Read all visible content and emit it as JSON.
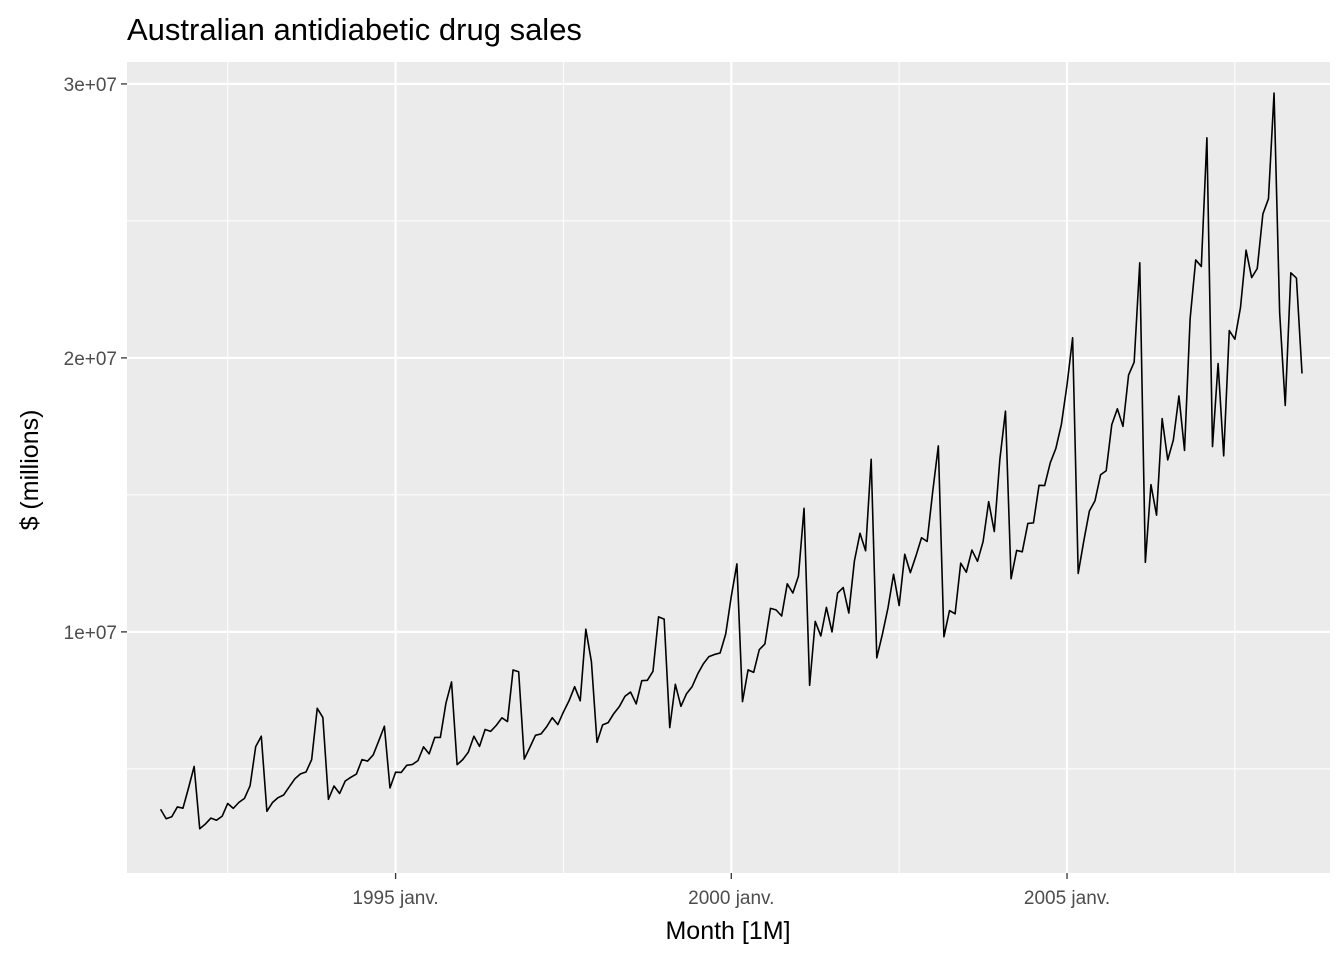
{
  "chart_data": {
    "type": "line",
    "title": "Australian antidiabetic drug sales",
    "xlabel": "Month [1M]",
    "ylabel": "$ (millions)",
    "x_range": [
      "1991-07",
      "2008-06"
    ],
    "x_axis_scale": "monthly dates",
    "xlim": [
      "1991-01",
      "2008-12"
    ],
    "ylim": [
      1200000,
      30800000
    ],
    "x_ticks": [
      {
        "value": "1995-01",
        "label": "1995 janv."
      },
      {
        "value": "2000-01",
        "label": "2000 janv."
      },
      {
        "value": "2005-01",
        "label": "2005 janv."
      }
    ],
    "x_minor_gridlines": [
      "1992-07",
      "1997-07",
      "2002-07",
      "2007-07"
    ],
    "y_ticks": [
      {
        "value": 10000000,
        "label": "1e+07"
      },
      {
        "value": 20000000,
        "label": "2e+07"
      },
      {
        "value": 30000000,
        "label": "3e+07"
      }
    ],
    "y_minor_gridlines": [
      5000000,
      15000000,
      25000000
    ],
    "grid": true,
    "legend": "none",
    "colors": {
      "panel": "#ebebeb",
      "grid": "#ffffff",
      "line": "#000000"
    },
    "series": [
      {
        "values": [
          3526591,
          3180891,
          3252221,
          3611003,
          3565869,
          4306371,
          5088335,
          2814520,
          2985811,
          3204780,
          3127578,
          3270523,
          3737851,
          3558776,
          3777202,
          3924490,
          4386531,
          5810549,
          6192068,
          3450857,
          3772307,
          3949726,
          4047497,
          4344711,
          4637489,
          4818166,
          4888170,
          5337713,
          7210070,
          6878754,
          3889470,
          4376800,
          4102680,
          4557180,
          4693630,
          4811790,
          5339050,
          5285640,
          5508960,
          6024130,
          6555800,
          4303100,
          4878700,
          4869000,
          5130800,
          5160500,
          5301700,
          5804200,
          5547600,
          6146800,
          6147400,
          7396400,
          8173100,
          5153400,
          5338000,
          5610000,
          6191100,
          5819800,
          6439000,
          6370300,
          6587900,
          6863800,
          6728500,
          8610800,
          8544200,
          5358900,
          5785200,
          6226200,
          6277000,
          6537700,
          6868600,
          6617400,
          7077500,
          7485200,
          8000500,
          7485000,
          10100600,
          8915000,
          5969300,
          6606500,
          6689900,
          7018800,
          7275900,
          7652400,
          7803700,
          7370600,
          8219900,
          8231400,
          8560300,
          10549500,
          10466100,
          6507400,
          8085200,
          7282700,
          7744300,
          8003800,
          8467300,
          8832200,
          9099200,
          9176200,
          9229800,
          9922000,
          11300000,
          12480000,
          7456000,
          8613000,
          8524000,
          9349000,
          9559000,
          10859000,
          10804000,
          10580000,
          11755000,
          11419000,
          12035000,
          14510000,
          8050000,
          10384000,
          9851000,
          10894000,
          10000000,
          11417000,
          11619000,
          10689000,
          12587000,
          13599000,
          12960000,
          16300000,
          9054000,
          9912000,
          10872000,
          12104000,
          10961000,
          12833000,
          12163000,
          12772000,
          13436000,
          13301000,
          15127000,
          16789000,
          9822000,
          10780000,
          10660000,
          12507000,
          12177000,
          12987000,
          12576000,
          13297000,
          14753000,
          13663000,
          16301000,
          18057000,
          11941000,
          12974000,
          12922000,
          13959000,
          13979000,
          15351000,
          15339000,
          16166000,
          16693000,
          17582000,
          19018000,
          20734000,
          12134000,
          13320000,
          14412000,
          14787000,
          15735000,
          15882000,
          17565000,
          18142000,
          17500000,
          19374000,
          19845000,
          23470000,
          12539000,
          15374000,
          14261000,
          17787000,
          16277000,
          17001000,
          18610000,
          16622000,
          21428000,
          23576000,
          23335000,
          28035000,
          16763000,
          19793000,
          16427000,
          21000000,
          20681000,
          21834000,
          23930000,
          22930000,
          23263000,
          25250000,
          25806000,
          29665000,
          21654000,
          18264000,
          23107000,
          22913000,
          19431000
        ]
      }
    ]
  }
}
